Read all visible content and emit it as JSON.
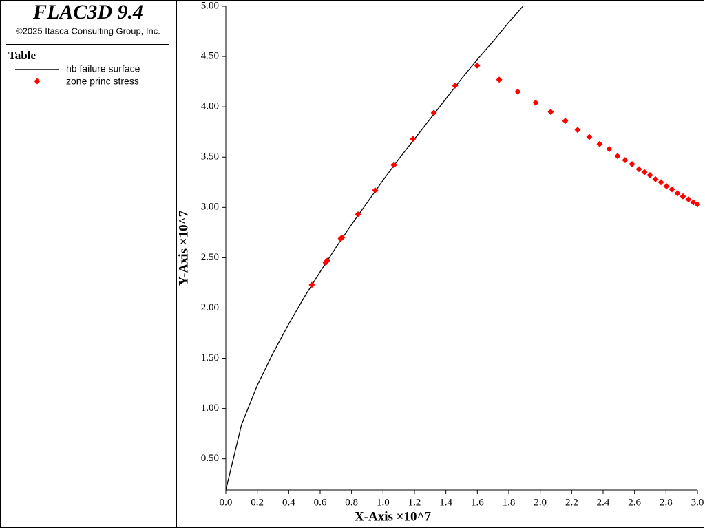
{
  "header": {
    "title": "FLAC3D 9.4",
    "copyright": "©2025 Itasca Consulting Group, Inc.",
    "legend_title": "Table"
  },
  "chart_data": {
    "type": "scatter",
    "xlabel": "X-Axis ×10^7",
    "ylabel": "Y-Axis ×10^7",
    "xlim": [
      0,
      3.0
    ],
    "ylim": [
      0.19,
      5.0
    ],
    "xticks": [
      {
        "value": 0,
        "label": "0.0"
      },
      0.2,
      0.4,
      0.6,
      0.8,
      {
        "value": 1,
        "label": "1.0"
      },
      1.2,
      1.4,
      1.6,
      1.8,
      {
        "value": 2,
        "label": "2.0"
      },
      2.2,
      2.4,
      2.6,
      2.8,
      {
        "value": 3,
        "label": "3.0"
      }
    ],
    "yticks": [
      {
        "value": 0.5,
        "label": "0.50"
      },
      {
        "value": 1,
        "label": "1.00"
      },
      {
        "value": 1.5,
        "label": "1.50"
      },
      {
        "value": 2,
        "label": "2.00"
      },
      {
        "value": 2.5,
        "label": "2.50"
      },
      {
        "value": 3,
        "label": "3.00"
      },
      {
        "value": 3.5,
        "label": "3.50"
      },
      {
        "value": 4,
        "label": "4.00"
      },
      {
        "value": 4.5,
        "label": "4.50"
      },
      {
        "value": 5,
        "label": "5.00"
      }
    ],
    "series": [
      {
        "name": "hb failure surface",
        "style": "line",
        "color": "#000000",
        "x": [
          0,
          0.1,
          0.2,
          0.3,
          0.4,
          0.5,
          0.6,
          0.7,
          0.8,
          0.9,
          1.0,
          1.1,
          1.2,
          1.3,
          1.4,
          1.5,
          1.6,
          1.7,
          1.8,
          1.89
        ],
        "values": [
          0.19,
          0.84,
          1.23,
          1.55,
          1.84,
          2.11,
          2.36,
          2.6,
          2.83,
          3.05,
          3.27,
          3.48,
          3.68,
          3.88,
          4.08,
          4.28,
          4.47,
          4.65,
          4.84,
          5.0
        ]
      },
      {
        "name": "zone princ stress",
        "style": "diamond",
        "color": "#ff0000",
        "x": [
          0.547,
          0.635,
          0.645,
          0.731,
          0.74,
          0.841,
          0.95,
          1.069,
          1.191,
          1.323,
          1.458,
          1.599,
          1.739,
          1.857,
          1.971,
          2.067,
          2.159,
          2.238,
          2.312,
          2.378,
          2.439,
          2.492,
          2.54,
          2.584,
          2.628,
          2.663,
          2.698,
          2.733,
          2.768,
          2.803,
          2.838,
          2.873,
          2.908,
          2.943,
          2.974,
          3.0
        ],
        "values": [
          2.23,
          2.45,
          2.47,
          2.69,
          2.7,
          2.93,
          3.17,
          3.42,
          3.68,
          3.94,
          4.21,
          4.41,
          4.27,
          4.15,
          4.04,
          3.95,
          3.86,
          3.77,
          3.7,
          3.63,
          3.58,
          3.51,
          3.47,
          3.43,
          3.38,
          3.35,
          3.32,
          3.28,
          3.25,
          3.21,
          3.18,
          3.14,
          3.11,
          3.08,
          3.05,
          3.03
        ]
      }
    ]
  }
}
